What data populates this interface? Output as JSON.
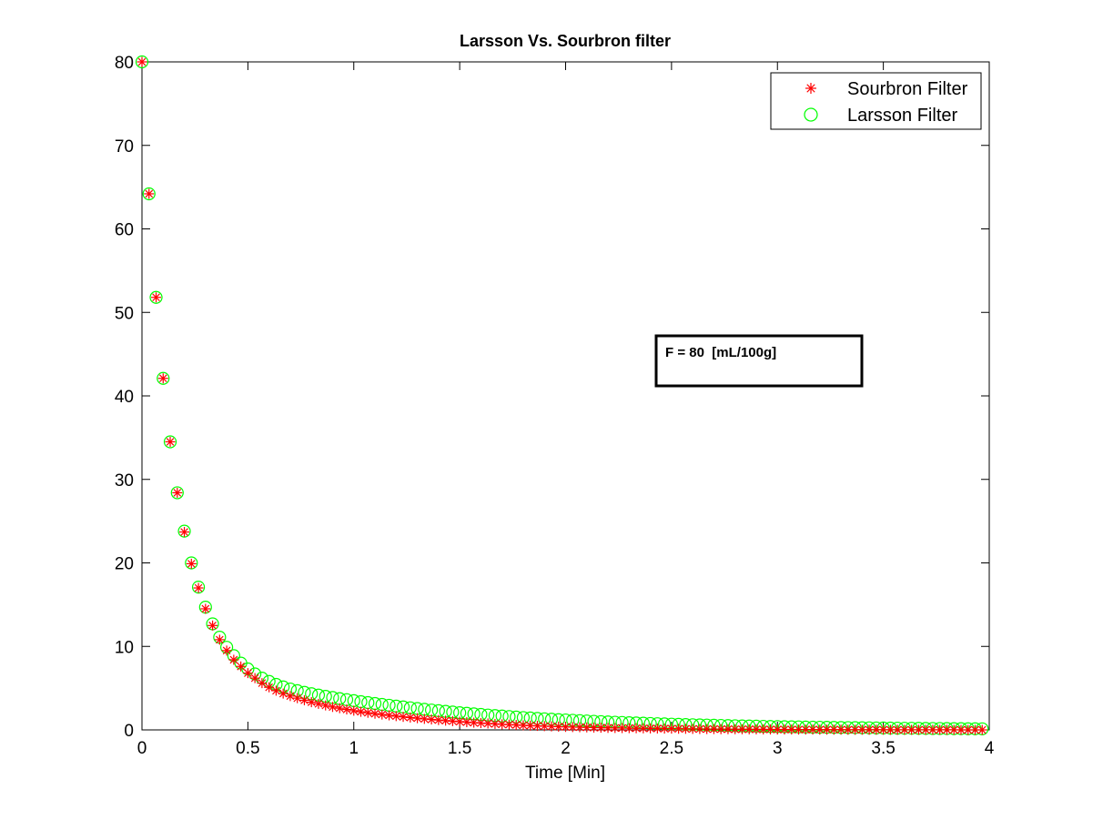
{
  "chart_data": {
    "type": "scatter",
    "title": "Larsson Vs. Sourbron filter",
    "xlabel": "Time [Min]",
    "ylabel": "",
    "xlim": [
      0,
      4
    ],
    "ylim": [
      0,
      80
    ],
    "xticks": [
      "0",
      "0.5",
      "1",
      "1.5",
      "2",
      "2.5",
      "3",
      "3.5",
      "4"
    ],
    "yticks": [
      "0",
      "10",
      "20",
      "30",
      "40",
      "50",
      "60",
      "70",
      "80"
    ],
    "grid": false,
    "legend_position": "top-right",
    "annotation": "F = 80  [mL/100g]",
    "series": [
      {
        "name": "Sourbron Filter",
        "marker": "asterisk",
        "color": "#ff0000",
        "x": [
          0,
          0.0333,
          0.0667,
          0.1,
          0.1333,
          0.1667,
          0.2,
          0.2333,
          0.2667,
          0.3,
          0.3333,
          0.3667,
          0.4,
          0.4333,
          0.4667,
          0.5,
          0.5333,
          0.5667,
          0.6,
          0.6333,
          0.6667,
          0.7,
          0.7333,
          0.7667,
          0.8,
          0.8333,
          0.8667,
          0.9,
          0.9333,
          0.9667,
          1.0,
          1.0333,
          1.0667,
          1.1,
          1.1333,
          1.1667,
          1.2,
          1.2333,
          1.2667,
          1.3,
          1.3333,
          1.3667,
          1.4,
          1.4333,
          1.4667,
          1.5,
          1.5333,
          1.5667,
          1.6,
          1.6333,
          1.6667,
          1.7,
          1.7333,
          1.7667,
          1.8,
          1.8333,
          1.8667,
          1.9,
          1.9333,
          1.9667,
          2.0,
          2.0333,
          2.0667,
          2.1,
          2.1333,
          2.1667,
          2.2,
          2.2333,
          2.2667,
          2.3,
          2.3333,
          2.3667,
          2.4,
          2.4333,
          2.4667,
          2.5,
          2.5333,
          2.5667,
          2.6,
          2.6333,
          2.6667,
          2.7,
          2.7333,
          2.7667,
          2.8,
          2.8333,
          2.8667,
          2.9,
          2.9333,
          2.9667,
          3.0,
          3.0333,
          3.0667,
          3.1,
          3.1333,
          3.1667,
          3.2,
          3.2333,
          3.2667,
          3.3,
          3.3333,
          3.3667,
          3.4,
          3.4333,
          3.4667,
          3.5,
          3.5333,
          3.5667,
          3.6,
          3.6333,
          3.6667,
          3.7,
          3.7333,
          3.7667,
          3.8,
          3.8333,
          3.8667,
          3.9,
          3.9333,
          3.9667
        ],
        "y": [
          80.0,
          64.2,
          51.8,
          42.1,
          34.5,
          28.4,
          23.7,
          19.9,
          17.0,
          14.5,
          12.5,
          10.8,
          9.5,
          8.4,
          7.6,
          6.8,
          6.2,
          5.6,
          5.1,
          4.7,
          4.35,
          4.05,
          3.8,
          3.55,
          3.32,
          3.12,
          2.93,
          2.75,
          2.6,
          2.45,
          2.3,
          2.17,
          2.05,
          1.94,
          1.84,
          1.74,
          1.65,
          1.56,
          1.48,
          1.4,
          1.32,
          1.25,
          1.18,
          1.11,
          1.05,
          0.99,
          0.93,
          0.87,
          0.82,
          0.77,
          0.72,
          0.67,
          0.63,
          0.59,
          0.55,
          0.51,
          0.48,
          0.45,
          0.42,
          0.39,
          0.36,
          0.34,
          0.32,
          0.3,
          0.28,
          0.26,
          0.24,
          0.23,
          0.22,
          0.21,
          0.2,
          0.19,
          0.18,
          0.17,
          0.16,
          0.15,
          0.14,
          0.13,
          0.12,
          0.11,
          0.1,
          0.1,
          0.09,
          0.09,
          0.08,
          0.08,
          0.07,
          0.07,
          0.06,
          0.06,
          0.05,
          0.05,
          0.05,
          0.04,
          0.04,
          0.04,
          0.03,
          0.03,
          0.03,
          0.03,
          0.02,
          0.02,
          0.02,
          0.02,
          0.02,
          0.02,
          0.01,
          0.01,
          0.01,
          0.01,
          0.01,
          0.01,
          0.01,
          0.01,
          0.01,
          0.01,
          0.0,
          0.0,
          0.0,
          0.0
        ]
      },
      {
        "name": "Larsson Filter",
        "marker": "circle",
        "color": "#00ff00",
        "x": [
          0,
          0.0333,
          0.0667,
          0.1,
          0.1333,
          0.1667,
          0.2,
          0.2333,
          0.2667,
          0.3,
          0.3333,
          0.3667,
          0.4,
          0.4333,
          0.4667,
          0.5,
          0.5333,
          0.5667,
          0.6,
          0.6333,
          0.6667,
          0.7,
          0.7333,
          0.7667,
          0.8,
          0.8333,
          0.8667,
          0.9,
          0.9333,
          0.9667,
          1.0,
          1.0333,
          1.0667,
          1.1,
          1.1333,
          1.1667,
          1.2,
          1.2333,
          1.2667,
          1.3,
          1.3333,
          1.3667,
          1.4,
          1.4333,
          1.4667,
          1.5,
          1.5333,
          1.5667,
          1.6,
          1.6333,
          1.6667,
          1.7,
          1.7333,
          1.7667,
          1.8,
          1.8333,
          1.8667,
          1.9,
          1.9333,
          1.9667,
          2.0,
          2.0333,
          2.0667,
          2.1,
          2.1333,
          2.1667,
          2.2,
          2.2333,
          2.2667,
          2.3,
          2.3333,
          2.3667,
          2.4,
          2.4333,
          2.4667,
          2.5,
          2.5333,
          2.5667,
          2.6,
          2.6333,
          2.6667,
          2.7,
          2.7333,
          2.7667,
          2.8,
          2.8333,
          2.8667,
          2.9,
          2.9333,
          2.9667,
          3.0,
          3.0333,
          3.0667,
          3.1,
          3.1333,
          3.1667,
          3.2,
          3.2333,
          3.2667,
          3.3,
          3.3333,
          3.3667,
          3.4,
          3.4333,
          3.4667,
          3.5,
          3.5333,
          3.5667,
          3.6,
          3.6333,
          3.6667,
          3.7,
          3.7333,
          3.7667,
          3.8,
          3.8333,
          3.8667,
          3.9,
          3.9333,
          3.9667
        ],
        "y": [
          80.0,
          64.2,
          51.8,
          42.1,
          34.5,
          28.4,
          23.8,
          20.0,
          17.1,
          14.7,
          12.7,
          11.1,
          9.9,
          8.9,
          8.0,
          7.3,
          6.7,
          6.2,
          5.8,
          5.45,
          5.15,
          4.9,
          4.7,
          4.5,
          4.33,
          4.17,
          4.02,
          3.88,
          3.75,
          3.62,
          3.5,
          3.38,
          3.27,
          3.16,
          3.05,
          2.95,
          2.85,
          2.75,
          2.65,
          2.56,
          2.47,
          2.38,
          2.3,
          2.22,
          2.14,
          2.06,
          1.99,
          1.92,
          1.85,
          1.78,
          1.72,
          1.66,
          1.6,
          1.54,
          1.48,
          1.43,
          1.38,
          1.33,
          1.28,
          1.23,
          1.19,
          1.15,
          1.11,
          1.07,
          1.03,
          0.99,
          0.95,
          0.92,
          0.89,
          0.86,
          0.83,
          0.8,
          0.77,
          0.74,
          0.72,
          0.69,
          0.67,
          0.64,
          0.62,
          0.6,
          0.58,
          0.56,
          0.54,
          0.52,
          0.5,
          0.48,
          0.46,
          0.45,
          0.43,
          0.41,
          0.4,
          0.38,
          0.37,
          0.36,
          0.34,
          0.33,
          0.32,
          0.31,
          0.3,
          0.29,
          0.28,
          0.27,
          0.26,
          0.25,
          0.24,
          0.23,
          0.22,
          0.21,
          0.2,
          0.2,
          0.19,
          0.18,
          0.17,
          0.17,
          0.16,
          0.15,
          0.15,
          0.14,
          0.14,
          0.13
        ]
      }
    ]
  }
}
